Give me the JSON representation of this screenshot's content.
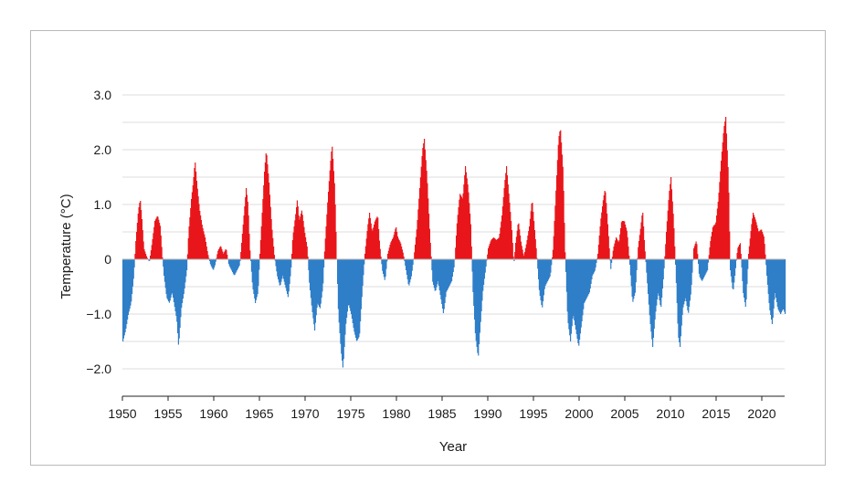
{
  "chart_data": {
    "type": "bar",
    "title": "",
    "xlabel": "Year",
    "ylabel": "Temperature (°C)",
    "xlim": [
      1950,
      2022.5
    ],
    "ylim": [
      -2.5,
      3.0
    ],
    "grid": true,
    "legend": "none",
    "colors": {
      "positive": "#e8161b",
      "negative": "#2f7ec8",
      "grid": "#dcdcdc",
      "axis": "#222222"
    },
    "xtick_values": [
      1950,
      1955,
      1960,
      1965,
      1970,
      1975,
      1980,
      1985,
      1990,
      1995,
      2000,
      2005,
      2010,
      2015,
      2020
    ],
    "xtick_labels": [
      "1950",
      "1955",
      "1960",
      "1965",
      "1970",
      "1975",
      "1980",
      "1985",
      "1990",
      "1995",
      "2000",
      "2005",
      "2010",
      "2015",
      "2020"
    ],
    "ytick_values": [
      3.0,
      2.0,
      1.0,
      0,
      -1.0,
      -2.0
    ],
    "ytick_labels": [
      "3.0",
      "2.0",
      "1.0",
      "0",
      "−1.0",
      "−2.0"
    ],
    "grid_values": [
      3.0,
      2.5,
      2.0,
      1.5,
      1.0,
      0.5,
      -0.5,
      -1.0,
      -1.5,
      -2.0,
      -2.5
    ],
    "series_keypoints": [
      [
        1950.0,
        -1.5
      ],
      [
        1950.3,
        -1.3
      ],
      [
        1950.6,
        -1.0
      ],
      [
        1950.9,
        -0.8
      ],
      [
        1951.2,
        -0.3
      ],
      [
        1951.4,
        0.3
      ],
      [
        1951.7,
        0.9
      ],
      [
        1951.9,
        1.1
      ],
      [
        1952.1,
        0.7
      ],
      [
        1952.3,
        0.2
      ],
      [
        1952.6,
        0.05
      ],
      [
        1952.9,
        -0.05
      ],
      [
        1953.2,
        0.3
      ],
      [
        1953.5,
        0.7
      ],
      [
        1953.8,
        0.8
      ],
      [
        1954.1,
        0.6
      ],
      [
        1954.3,
        0.1
      ],
      [
        1954.5,
        -0.3
      ],
      [
        1954.8,
        -0.7
      ],
      [
        1955.1,
        -0.8
      ],
      [
        1955.4,
        -0.6
      ],
      [
        1955.7,
        -0.9
      ],
      [
        1955.9,
        -1.1
      ],
      [
        1956.1,
        -1.6
      ],
      [
        1956.4,
        -0.9
      ],
      [
        1956.7,
        -0.6
      ],
      [
        1957.0,
        -0.2
      ],
      [
        1957.2,
        0.5
      ],
      [
        1957.5,
        1.1
      ],
      [
        1957.7,
        1.4
      ],
      [
        1957.9,
        1.8
      ],
      [
        1958.1,
        1.4
      ],
      [
        1958.4,
        0.9
      ],
      [
        1958.7,
        0.6
      ],
      [
        1959.0,
        0.4
      ],
      [
        1959.3,
        0.1
      ],
      [
        1959.6,
        -0.1
      ],
      [
        1959.9,
        -0.2
      ],
      [
        1960.1,
        -0.1
      ],
      [
        1960.4,
        0.15
      ],
      [
        1960.7,
        0.25
      ],
      [
        1961.0,
        0.1
      ],
      [
        1961.3,
        0.2
      ],
      [
        1961.6,
        -0.1
      ],
      [
        1961.9,
        -0.2
      ],
      [
        1962.2,
        -0.3
      ],
      [
        1962.5,
        -0.2
      ],
      [
        1962.8,
        -0.1
      ],
      [
        1963.0,
        0.3
      ],
      [
        1963.3,
        0.9
      ],
      [
        1963.5,
        1.3
      ],
      [
        1963.7,
        1.0
      ],
      [
        1963.9,
        0.2
      ],
      [
        1964.2,
        -0.5
      ],
      [
        1964.5,
        -0.8
      ],
      [
        1964.8,
        -0.6
      ],
      [
        1965.0,
        0.1
      ],
      [
        1965.3,
        1.0
      ],
      [
        1965.5,
        1.6
      ],
      [
        1965.7,
        2.0
      ],
      [
        1966.0,
        1.4
      ],
      [
        1966.3,
        0.6
      ],
      [
        1966.6,
        0.05
      ],
      [
        1966.9,
        -0.3
      ],
      [
        1967.2,
        -0.5
      ],
      [
        1967.5,
        -0.3
      ],
      [
        1967.8,
        -0.5
      ],
      [
        1968.1,
        -0.7
      ],
      [
        1968.4,
        -0.2
      ],
      [
        1968.6,
        0.4
      ],
      [
        1968.9,
        0.8
      ],
      [
        1969.1,
        1.1
      ],
      [
        1969.3,
        0.7
      ],
      [
        1969.6,
        0.9
      ],
      [
        1969.9,
        0.5
      ],
      [
        1970.2,
        0.2
      ],
      [
        1970.4,
        -0.4
      ],
      [
        1970.7,
        -0.9
      ],
      [
        1971.0,
        -1.3
      ],
      [
        1971.3,
        -0.8
      ],
      [
        1971.6,
        -0.9
      ],
      [
        1971.9,
        -0.5
      ],
      [
        1972.1,
        0.2
      ],
      [
        1972.4,
        1.0
      ],
      [
        1972.7,
        1.7
      ],
      [
        1972.9,
        2.1
      ],
      [
        1973.2,
        1.3
      ],
      [
        1973.4,
        0.1
      ],
      [
        1973.6,
        -1.0
      ],
      [
        1973.9,
        -1.7
      ],
      [
        1974.1,
        -2.0
      ],
      [
        1974.4,
        -1.2
      ],
      [
        1974.7,
        -0.8
      ],
      [
        1975.0,
        -1.0
      ],
      [
        1975.3,
        -1.3
      ],
      [
        1975.6,
        -1.5
      ],
      [
        1975.9,
        -1.4
      ],
      [
        1976.2,
        -0.6
      ],
      [
        1976.5,
        0.1
      ],
      [
        1976.8,
        0.6
      ],
      [
        1977.0,
        0.85
      ],
      [
        1977.3,
        0.5
      ],
      [
        1977.6,
        0.7
      ],
      [
        1977.9,
        0.8
      ],
      [
        1978.1,
        0.3
      ],
      [
        1978.4,
        -0.2
      ],
      [
        1978.7,
        -0.4
      ],
      [
        1979.0,
        0.1
      ],
      [
        1979.3,
        0.3
      ],
      [
        1979.6,
        0.4
      ],
      [
        1979.9,
        0.6
      ],
      [
        1980.1,
        0.4
      ],
      [
        1980.4,
        0.3
      ],
      [
        1980.7,
        0.1
      ],
      [
        1981.0,
        -0.2
      ],
      [
        1981.3,
        -0.5
      ],
      [
        1981.6,
        -0.3
      ],
      [
        1981.9,
        0.1
      ],
      [
        1982.2,
        0.6
      ],
      [
        1982.5,
        1.3
      ],
      [
        1982.8,
        2.0
      ],
      [
        1983.0,
        2.2
      ],
      [
        1983.3,
        1.5
      ],
      [
        1983.6,
        0.5
      ],
      [
        1983.9,
        -0.4
      ],
      [
        1984.2,
        -0.6
      ],
      [
        1984.5,
        -0.4
      ],
      [
        1984.8,
        -0.7
      ],
      [
        1985.1,
        -1.0
      ],
      [
        1985.4,
        -0.6
      ],
      [
        1985.7,
        -0.5
      ],
      [
        1986.0,
        -0.4
      ],
      [
        1986.3,
        -0.1
      ],
      [
        1986.6,
        0.7
      ],
      [
        1986.9,
        1.2
      ],
      [
        1987.2,
        1.1
      ],
      [
        1987.5,
        1.7
      ],
      [
        1987.8,
        1.3
      ],
      [
        1988.1,
        0.6
      ],
      [
        1988.3,
        -0.5
      ],
      [
        1988.6,
        -1.4
      ],
      [
        1988.9,
        -1.8
      ],
      [
        1989.1,
        -1.3
      ],
      [
        1989.4,
        -0.6
      ],
      [
        1989.7,
        -0.2
      ],
      [
        1990.0,
        0.2
      ],
      [
        1990.3,
        0.35
      ],
      [
        1990.6,
        0.4
      ],
      [
        1990.9,
        0.35
      ],
      [
        1991.2,
        0.4
      ],
      [
        1991.5,
        0.8
      ],
      [
        1991.8,
        1.4
      ],
      [
        1992.0,
        1.7
      ],
      [
        1992.3,
        1.1
      ],
      [
        1992.6,
        0.5
      ],
      [
        1992.8,
        -0.1
      ],
      [
        1993.0,
        0.3
      ],
      [
        1993.3,
        0.7
      ],
      [
        1993.6,
        0.3
      ],
      [
        1993.9,
        0.05
      ],
      [
        1994.2,
        0.3
      ],
      [
        1994.5,
        0.6
      ],
      [
        1994.8,
        1.1
      ],
      [
        1995.0,
        0.7
      ],
      [
        1995.3,
        0.1
      ],
      [
        1995.6,
        -0.6
      ],
      [
        1995.9,
        -0.9
      ],
      [
        1996.2,
        -0.5
      ],
      [
        1996.5,
        -0.4
      ],
      [
        1996.8,
        -0.3
      ],
      [
        1997.1,
        0.2
      ],
      [
        1997.4,
        1.2
      ],
      [
        1997.7,
        2.2
      ],
      [
        1997.9,
        2.4
      ],
      [
        1998.2,
        1.6
      ],
      [
        1998.4,
        0.2
      ],
      [
        1998.7,
        -1.1
      ],
      [
        1999.0,
        -1.5
      ],
      [
        1999.3,
        -1.0
      ],
      [
        1999.6,
        -1.3
      ],
      [
        1999.9,
        -1.6
      ],
      [
        2000.2,
        -1.2
      ],
      [
        2000.5,
        -0.8
      ],
      [
        2000.8,
        -0.7
      ],
      [
        2001.1,
        -0.6
      ],
      [
        2001.4,
        -0.3
      ],
      [
        2001.7,
        -0.2
      ],
      [
        2002.0,
        0.1
      ],
      [
        2002.3,
        0.7
      ],
      [
        2002.6,
        1.1
      ],
      [
        2002.8,
        1.3
      ],
      [
        2003.1,
        0.6
      ],
      [
        2003.4,
        -0.2
      ],
      [
        2003.7,
        0.2
      ],
      [
        2004.0,
        0.4
      ],
      [
        2004.3,
        0.3
      ],
      [
        2004.6,
        0.7
      ],
      [
        2004.9,
        0.7
      ],
      [
        2005.2,
        0.5
      ],
      [
        2005.5,
        -0.1
      ],
      [
        2005.8,
        -0.8
      ],
      [
        2006.1,
        -0.6
      ],
      [
        2006.4,
        0.2
      ],
      [
        2006.7,
        0.6
      ],
      [
        2006.9,
        0.9
      ],
      [
        2007.1,
        0.3
      ],
      [
        2007.4,
        -0.4
      ],
      [
        2007.7,
        -1.1
      ],
      [
        2008.0,
        -1.6
      ],
      [
        2008.3,
        -1.0
      ],
      [
        2008.6,
        -0.6
      ],
      [
        2008.9,
        -0.9
      ],
      [
        2009.2,
        -0.3
      ],
      [
        2009.5,
        0.5
      ],
      [
        2009.8,
        1.2
      ],
      [
        2010.0,
        1.5
      ],
      [
        2010.3,
        0.7
      ],
      [
        2010.6,
        -0.5
      ],
      [
        2010.8,
        -1.4
      ],
      [
        2011.0,
        -1.6
      ],
      [
        2011.3,
        -0.9
      ],
      [
        2011.6,
        -0.7
      ],
      [
        2011.9,
        -1.0
      ],
      [
        2012.2,
        -0.6
      ],
      [
        2012.5,
        0.2
      ],
      [
        2012.8,
        0.35
      ],
      [
        2013.1,
        -0.3
      ],
      [
        2013.4,
        -0.4
      ],
      [
        2013.7,
        -0.3
      ],
      [
        2014.0,
        -0.2
      ],
      [
        2014.3,
        0.3
      ],
      [
        2014.6,
        0.6
      ],
      [
        2014.9,
        0.65
      ],
      [
        2015.2,
        1.1
      ],
      [
        2015.5,
        1.8
      ],
      [
        2015.8,
        2.4
      ],
      [
        2016.0,
        2.6
      ],
      [
        2016.3,
        1.5
      ],
      [
        2016.5,
        -0.2
      ],
      [
        2016.8,
        -0.6
      ],
      [
        2017.0,
        -0.3
      ],
      [
        2017.3,
        0.2
      ],
      [
        2017.6,
        0.3
      ],
      [
        2017.9,
        -0.6
      ],
      [
        2018.2,
        -0.9
      ],
      [
        2018.5,
        0.1
      ],
      [
        2018.8,
        0.6
      ],
      [
        2019.0,
        0.85
      ],
      [
        2019.3,
        0.7
      ],
      [
        2019.6,
        0.5
      ],
      [
        2019.9,
        0.55
      ],
      [
        2020.2,
        0.4
      ],
      [
        2020.5,
        -0.3
      ],
      [
        2020.8,
        -0.9
      ],
      [
        2021.1,
        -1.2
      ],
      [
        2021.4,
        -0.6
      ],
      [
        2021.7,
        -0.9
      ],
      [
        2022.0,
        -1.0
      ],
      [
        2022.3,
        -0.9
      ],
      [
        2022.5,
        -1.0
      ]
    ]
  }
}
